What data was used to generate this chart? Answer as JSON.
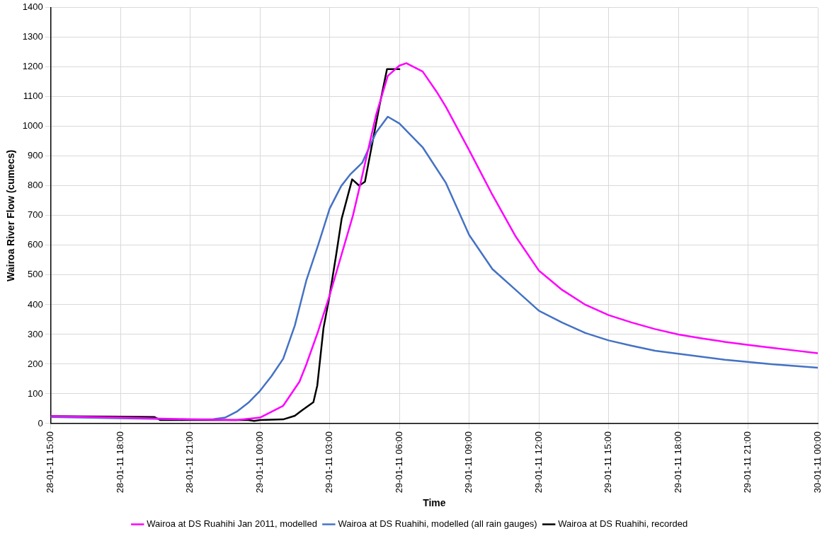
{
  "chart_data": {
    "type": "line",
    "xlabel": "Time",
    "ylabel": "Wairoa River Flow (cumecs)",
    "xlim": [
      "2011-01-28T15:00",
      "2011-01-30T00:00"
    ],
    "ylim": [
      0,
      1400
    ],
    "xticks": [
      {
        "value": "2011-01-28T15:00",
        "label": "28-01-11 15:00"
      },
      {
        "value": "2011-01-28T18:00",
        "label": "28-01-11 18:00"
      },
      {
        "value": "2011-01-28T21:00",
        "label": "28-01-11 21:00"
      },
      {
        "value": "2011-01-29T00:00",
        "label": "29-01-11 00:00"
      },
      {
        "value": "2011-01-29T03:00",
        "label": "29-01-11 03:00"
      },
      {
        "value": "2011-01-29T06:00",
        "label": "29-01-11 06:00"
      },
      {
        "value": "2011-01-29T09:00",
        "label": "29-01-11 09:00"
      },
      {
        "value": "2011-01-29T12:00",
        "label": "29-01-11 12:00"
      },
      {
        "value": "2011-01-29T15:00",
        "label": "29-01-11 15:00"
      },
      {
        "value": "2011-01-29T18:00",
        "label": "29-01-11 18:00"
      },
      {
        "value": "2011-01-29T21:00",
        "label": "29-01-11 21:00"
      },
      {
        "value": "2011-01-30T00:00",
        "label": "30-01-11 00:00"
      }
    ],
    "yticks": [
      0,
      100,
      200,
      300,
      400,
      500,
      600,
      700,
      800,
      900,
      1000,
      1100,
      1200,
      1300,
      1400
    ],
    "grid": true,
    "legend": "bottom",
    "marker": "none",
    "line_style": "solid",
    "series": [
      {
        "name": "Wairoa at DS Ruahihi Jan 2011, modelled",
        "color": "#ff00ff",
        "x": [
          "2011-01-28T15:00",
          "2011-01-28T18:00",
          "2011-01-28T21:00",
          "2011-01-28T23:00",
          "2011-01-29T00:00",
          "2011-01-29T01:00",
          "2011-01-29T01:42",
          "2011-01-29T02:00",
          "2011-01-29T02:30",
          "2011-01-29T03:00",
          "2011-01-29T04:00",
          "2011-01-29T04:18",
          "2011-01-29T05:00",
          "2011-01-29T05:30",
          "2011-01-29T06:00",
          "2011-01-29T06:18",
          "2011-01-29T07:00",
          "2011-01-29T07:36",
          "2011-01-29T08:00",
          "2011-01-29T09:00",
          "2011-01-29T10:00",
          "2011-01-29T11:00",
          "2011-01-29T12:00",
          "2011-01-29T13:00",
          "2011-01-29T14:00",
          "2011-01-29T15:00",
          "2011-01-29T16:00",
          "2011-01-29T17:00",
          "2011-01-29T18:00",
          "2011-01-29T19:00",
          "2011-01-29T20:00",
          "2011-01-29T21:00",
          "2011-01-29T22:00",
          "2011-01-29T23:00",
          "2011-01-30T00:00"
        ],
        "values": [
          25,
          20,
          14,
          12,
          20,
          60,
          141,
          200,
          310,
          432,
          700,
          800,
          1040,
          1170,
          1205,
          1213,
          1185,
          1117,
          1066,
          920,
          770,
          630,
          515,
          450,
          400,
          365,
          340,
          318,
          300,
          287,
          275,
          265,
          255,
          246,
          237
        ]
      },
      {
        "name": "Wairoa at DS Ruahihi, modelled (all rain gauges)",
        "color": "#4472c4",
        "x": [
          "2011-01-28T15:00",
          "2011-01-28T18:00",
          "2011-01-28T21:00",
          "2011-01-28T22:00",
          "2011-01-28T22:30",
          "2011-01-28T23:00",
          "2011-01-28T23:30",
          "2011-01-29T00:00",
          "2011-01-29T00:30",
          "2011-01-29T01:00",
          "2011-01-29T01:30",
          "2011-01-29T02:00",
          "2011-01-29T02:30",
          "2011-01-29T03:00",
          "2011-01-29T03:30",
          "2011-01-29T03:54",
          "2011-01-29T04:24",
          "2011-01-29T05:00",
          "2011-01-29T05:30",
          "2011-01-29T06:00",
          "2011-01-29T07:00",
          "2011-01-29T08:00",
          "2011-01-29T09:00",
          "2011-01-29T10:00",
          "2011-01-29T11:00",
          "2011-01-29T12:00",
          "2011-01-29T13:00",
          "2011-01-29T14:00",
          "2011-01-29T15:00",
          "2011-01-29T16:00",
          "2011-01-29T17:00",
          "2011-01-29T18:00",
          "2011-01-29T20:00",
          "2011-01-29T22:00",
          "2011-01-30T00:00"
        ],
        "values": [
          22,
          18,
          14,
          15,
          20,
          40,
          70,
          110,
          160,
          218,
          330,
          483,
          600,
          724,
          800,
          840,
          878,
          980,
          1033,
          1010,
          930,
          810,
          635,
          520,
          450,
          380,
          340,
          305,
          280,
          262,
          245,
          235,
          215,
          200,
          188
        ]
      },
      {
        "name": "Wairoa at DS Ruahihi, recorded",
        "color": "#000000",
        "x": [
          "2011-01-28T15:00",
          "2011-01-28T18:00",
          "2011-01-28T19:28",
          "2011-01-28T19:42",
          "2011-01-28T23:30",
          "2011-01-28T23:45",
          "2011-01-29T00:00",
          "2011-01-29T01:00",
          "2011-01-29T01:30",
          "2011-01-29T01:48",
          "2011-01-29T02:18",
          "2011-01-29T02:28",
          "2011-01-29T02:44",
          "2011-01-29T03:00",
          "2011-01-29T03:17",
          "2011-01-29T03:31",
          "2011-01-29T03:58",
          "2011-01-29T04:16",
          "2011-01-29T04:31",
          "2011-01-29T05:08",
          "2011-01-29T05:28",
          "2011-01-29T06:00"
        ],
        "values": [
          25,
          23,
          22,
          12,
          12,
          9,
          12,
          14,
          26,
          44,
          72,
          128,
          321,
          432,
          570,
          690,
          822,
          801,
          814,
          1066,
          1193,
          1193
        ]
      }
    ]
  }
}
